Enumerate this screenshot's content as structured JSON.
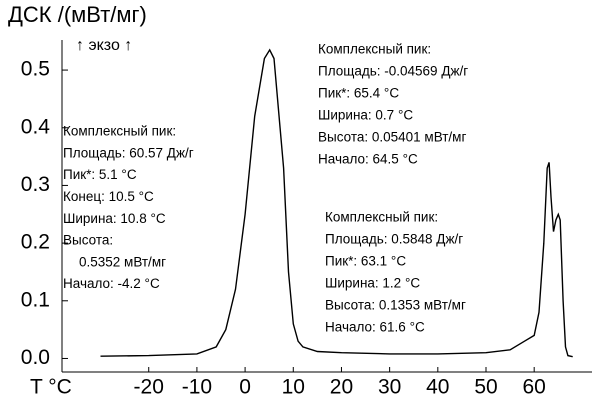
{
  "chart_data": {
    "type": "line",
    "title": "ДСК /(мВт/мг)",
    "subtitle": "↑ экзо ↑",
    "x_label": "T °C",
    "x": [
      -30,
      -20,
      -10,
      -6,
      -4,
      -2,
      0,
      2,
      4,
      5.1,
      6,
      8,
      9,
      10,
      11,
      12,
      15,
      20,
      30,
      40,
      50,
      55,
      58,
      60,
      61,
      62,
      62.7,
      63.1,
      63.5,
      64,
      64.5,
      65,
      65.4,
      66,
      66.5,
      67,
      68
    ],
    "series": [
      {
        "color": "#000000",
        "values": [
          0.004,
          0.005,
          0.008,
          0.02,
          0.05,
          0.12,
          0.25,
          0.42,
          0.52,
          0.535,
          0.52,
          0.33,
          0.15,
          0.06,
          0.03,
          0.02,
          0.012,
          0.01,
          0.008,
          0.008,
          0.01,
          0.015,
          0.03,
          0.04,
          0.08,
          0.2,
          0.33,
          0.34,
          0.28,
          0.22,
          0.24,
          0.25,
          0.24,
          0.1,
          0.02,
          0.005,
          0.003
        ]
      }
    ],
    "xlim": [
      -38,
      72
    ],
    "ylim": [
      -0.02,
      0.54
    ],
    "xticks": [
      -20,
      -10,
      0,
      10,
      20,
      30,
      40,
      50,
      60
    ],
    "yticks": [
      {
        "value": 0,
        "label": "0.0"
      },
      0.1,
      0.2,
      0.3,
      0.4,
      0.5
    ],
    "annotations": [
      {
        "lines": [
          "Комплексный пик:",
          "Площадь: 60.57 Дж/г",
          "Пик*:      5.1 °C",
          "Конец:     10.5 °C",
          "Ширина:   10.8 °C",
          "Высота:",
          "0.5352 мВт/мг",
          "Начало: -4.2 °C"
        ]
      },
      {
        "lines": [
          "Комплексный пик:",
          "Площадь:  -0.04569 Дж/г",
          "Пик*: 65.4 °C",
          "Ширина:   0.7 °C",
          "Высота: 0.05401 мВт/мг",
          "Начало: 64.5 °C"
        ]
      },
      {
        "lines": [
          "Комплексный пик:",
          "Площадь:  0.5848 Дж/г",
          "Пик*:     63.1 °C",
          "Ширина:   1.2 °C",
          "Высота: 0.1353 мВт/мг",
          "Начало: 61.6 °C"
        ]
      }
    ]
  }
}
